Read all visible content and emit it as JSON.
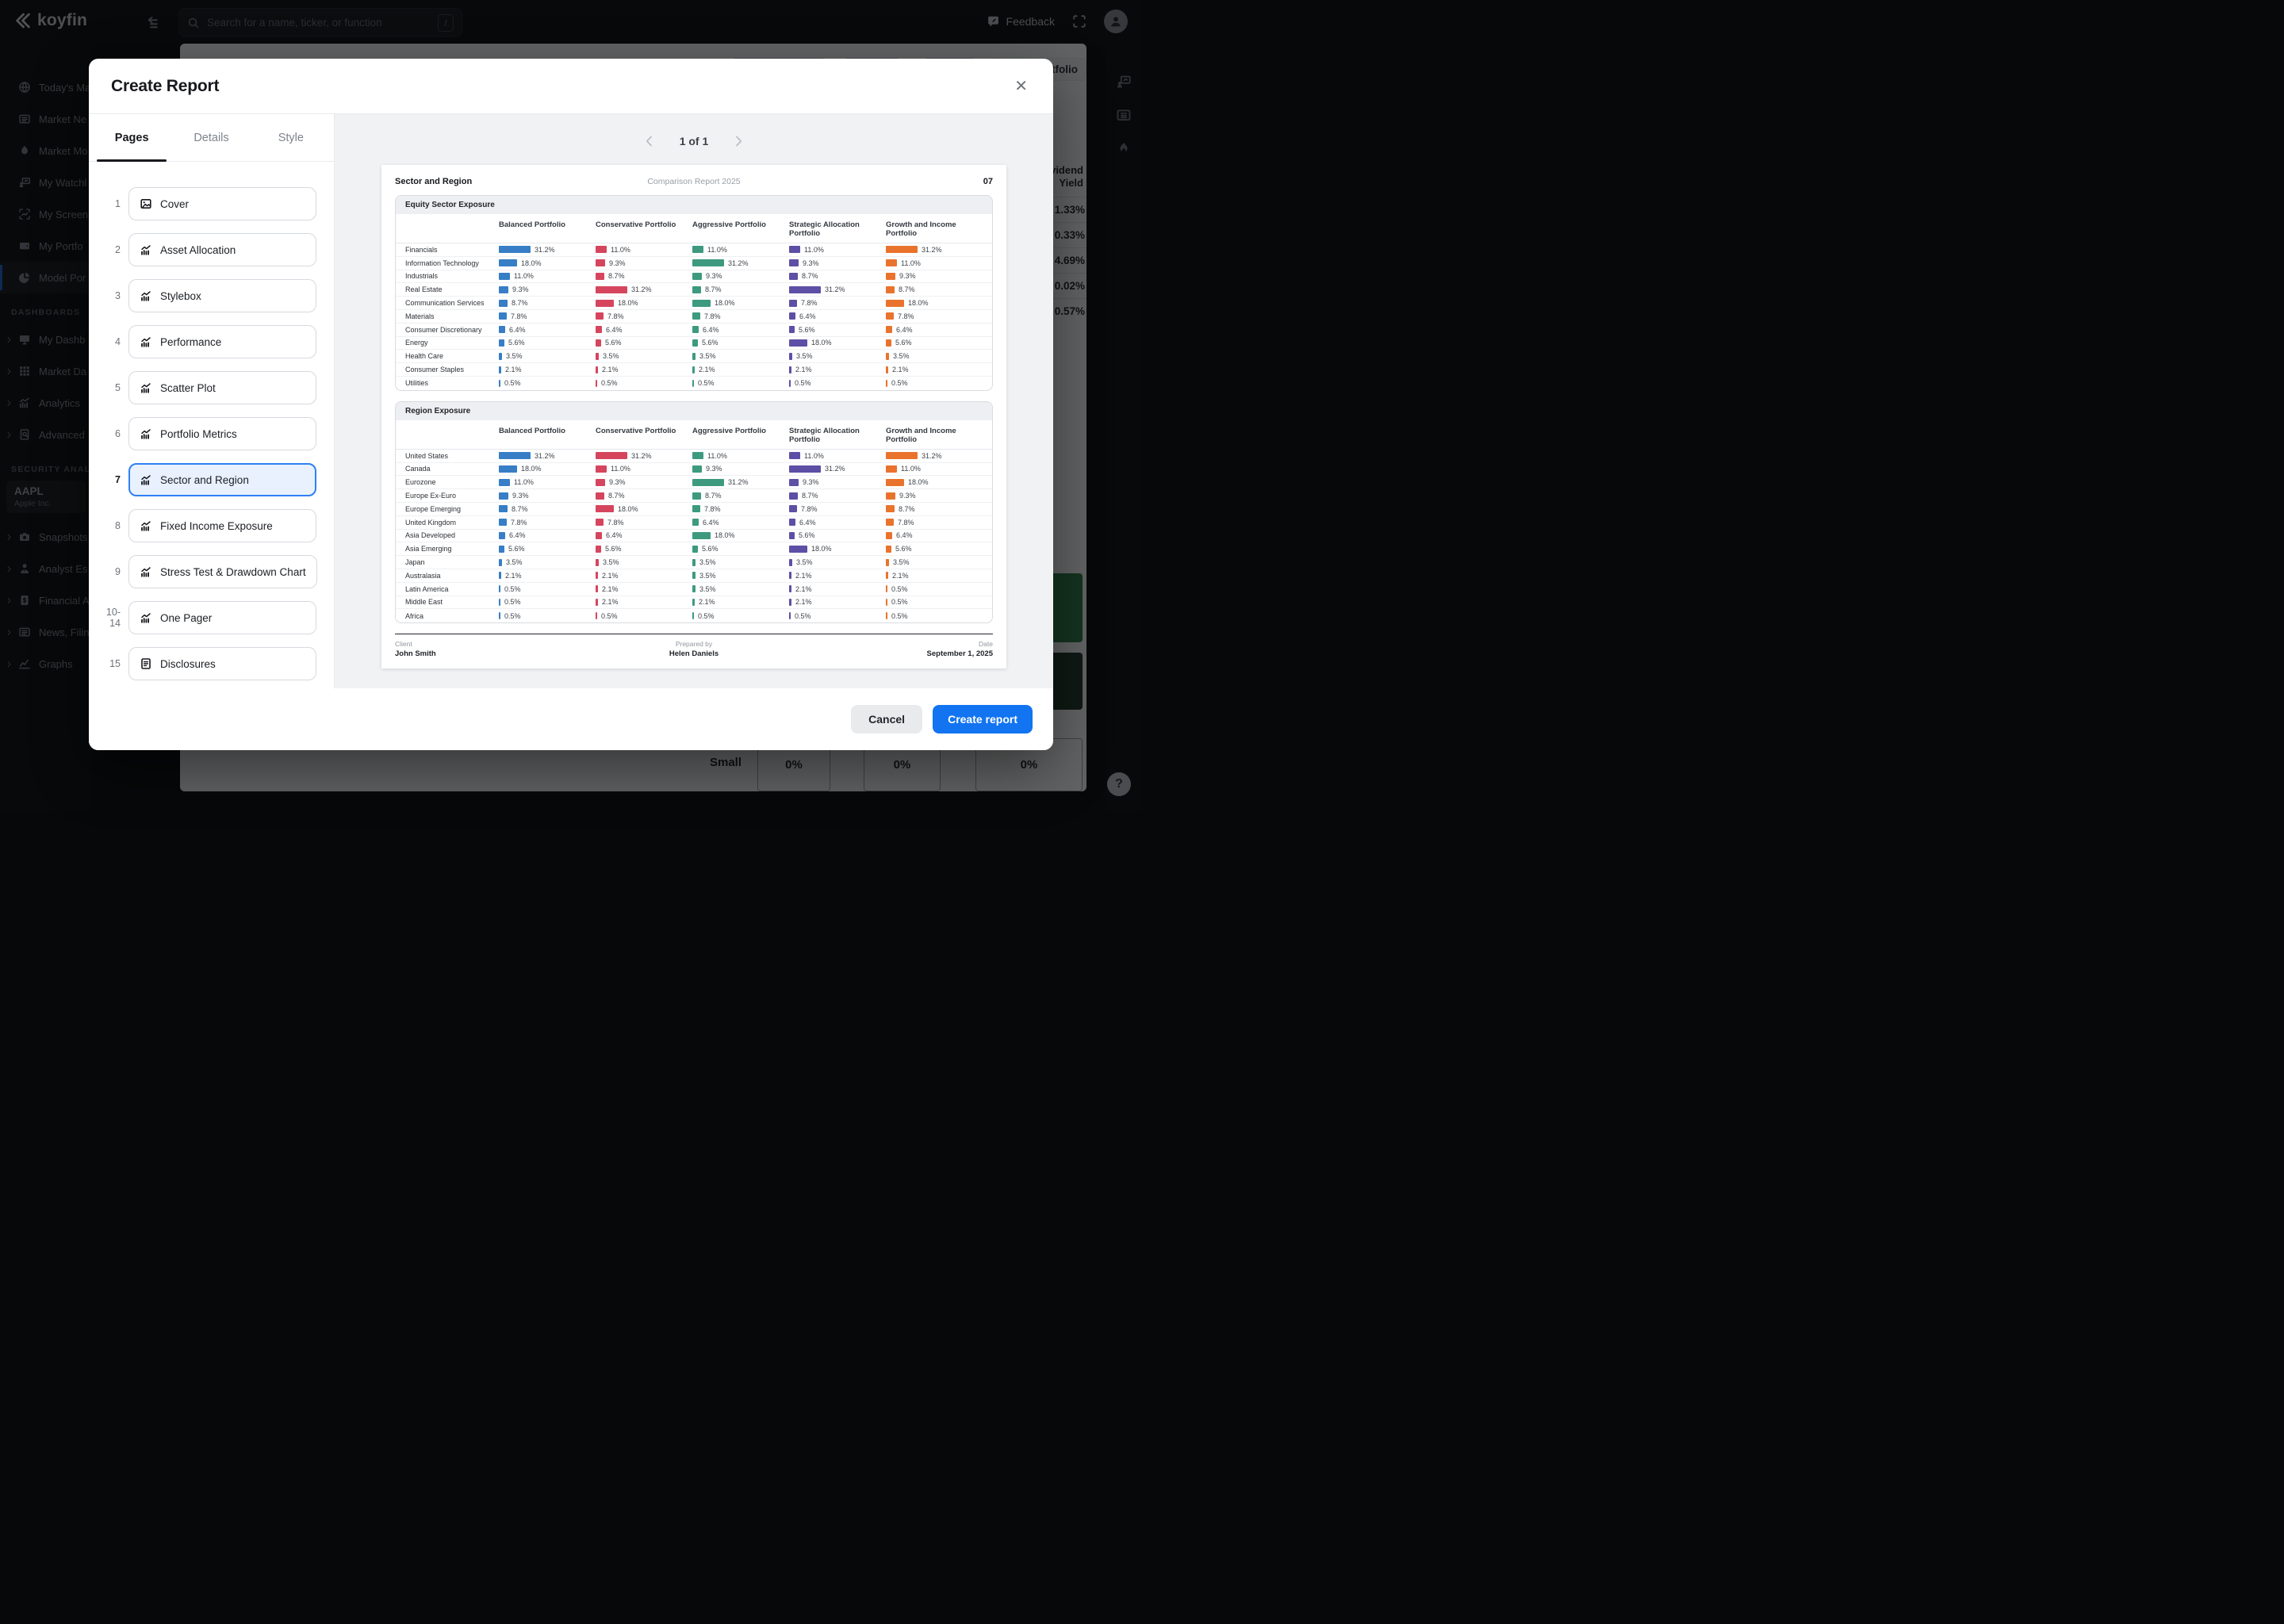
{
  "app": {
    "brand": "koyfin",
    "search": {
      "placeholder": "Search for a name, ticker, or function",
      "shortcut": "/"
    },
    "topbar": {
      "feedback_label": "Feedback"
    },
    "sidebar": {
      "items": [
        {
          "label": "Today's Ma",
          "icon": "globe"
        },
        {
          "label": "Market Ne",
          "icon": "news"
        },
        {
          "label": "Market Mo",
          "icon": "flame"
        },
        {
          "label": "My Watchl",
          "icon": "watchlist"
        },
        {
          "label": "My Screen",
          "icon": "screener"
        },
        {
          "label": "My Portfo",
          "icon": "wallet"
        },
        {
          "label": "Model Por",
          "icon": "pie",
          "active": true
        }
      ],
      "dashboards_label": "DASHBOARDS",
      "dashboard_items": [
        {
          "label": "My Dashb",
          "icon": "monitor",
          "expandable": true
        },
        {
          "label": "Market Da",
          "icon": "grid",
          "expandable": true
        },
        {
          "label": "Analytics",
          "icon": "chart",
          "expandable": true
        },
        {
          "label": "Advanced",
          "icon": "docsearch",
          "expandable": true
        }
      ],
      "security_label": "SECURITY ANALY",
      "ticker": {
        "symbol": "AAPL",
        "name": "Apple Inc."
      },
      "security_items": [
        {
          "label": "Snapshots",
          "icon": "camera",
          "expandable": true
        },
        {
          "label": "Analyst Es",
          "icon": "analyst",
          "expandable": true
        },
        {
          "label": "Financial A",
          "icon": "docdollar",
          "expandable": true
        },
        {
          "label": "News, Filin",
          "icon": "news",
          "expandable": true
        },
        {
          "label": "Graphs",
          "icon": "graph",
          "expandable": true
        }
      ]
    },
    "background": {
      "partial_button_text": "tfolio",
      "dividend_column": {
        "header_line1": "Dividend",
        "header_line2": "Yield",
        "values": [
          "1.33%",
          "0.33%",
          "4.69%",
          "0.02%",
          "0.57%"
        ]
      },
      "stylebox_row": {
        "label": "Small",
        "cells": [
          "0%",
          "0%",
          "0%"
        ]
      },
      "help_label": "?"
    }
  },
  "modal": {
    "title": "Create Report",
    "tabs": [
      {
        "label": "Pages",
        "active": true
      },
      {
        "label": "Details",
        "active": false
      },
      {
        "label": "Style",
        "active": false
      }
    ],
    "pages": [
      {
        "num": "1",
        "label": "Cover",
        "icon": "image"
      },
      {
        "num": "2",
        "label": "Asset Allocation",
        "icon": "chartp"
      },
      {
        "num": "3",
        "label": "Stylebox",
        "icon": "chartp"
      },
      {
        "num": "4",
        "label": "Performance",
        "icon": "chartp"
      },
      {
        "num": "5",
        "label": "Scatter Plot",
        "icon": "chartp"
      },
      {
        "num": "6",
        "label": "Portfolio Metrics",
        "icon": "chartp"
      },
      {
        "num": "7",
        "label": "Sector and Region",
        "icon": "chartp",
        "selected": true
      },
      {
        "num": "8",
        "label": "Fixed Income Exposure",
        "icon": "chartp"
      },
      {
        "num": "9",
        "label": "Stress Test & Drawdown Chart",
        "icon": "chartp"
      },
      {
        "num": "10-14",
        "label": "One Pager",
        "icon": "chartp"
      },
      {
        "num": "15",
        "label": "Disclosures",
        "icon": "docp"
      }
    ],
    "pagination": {
      "text": "1 of 1"
    },
    "footer": {
      "cancel": "Cancel",
      "create": "Create report"
    }
  },
  "report": {
    "title": "Sector and Region",
    "subtitle": "Comparison Report 2025",
    "page_number": "07",
    "footer": {
      "client_label": "Client",
      "client": "John Smith",
      "prepared_label": "Prepared by",
      "prepared": "Helen Daniels",
      "date_label": "Date",
      "date": "September 1, 2025"
    }
  },
  "chart_data": [
    {
      "type": "bar",
      "title": "Equity Sector Exposure",
      "value_suffix": "%",
      "columns": [
        "Balanced Portfolio",
        "Conservative Portfolio",
        "Aggressive Portfolio",
        "Strategic Allocation Portfolio",
        "Growth and Income Portfolio"
      ],
      "column_colors": [
        "#377ec6",
        "#d5455e",
        "#3d9a7f",
        "#5d4fa5",
        "#e9732d"
      ],
      "xlim": [
        0,
        35
      ],
      "rows": [
        {
          "label": "Financials",
          "values": [
            31.2,
            11.0,
            11.0,
            11.0,
            31.2
          ]
        },
        {
          "label": "Information Technology",
          "values": [
            18.0,
            9.3,
            31.2,
            9.3,
            11.0
          ]
        },
        {
          "label": "Industrials",
          "values": [
            11.0,
            8.7,
            9.3,
            8.7,
            9.3
          ]
        },
        {
          "label": "Real Estate",
          "values": [
            9.3,
            31.2,
            8.7,
            31.2,
            8.7
          ]
        },
        {
          "label": "Communication Services",
          "values": [
            8.7,
            18.0,
            18.0,
            7.8,
            18.0
          ]
        },
        {
          "label": "Materials",
          "values": [
            7.8,
            7.8,
            7.8,
            6.4,
            7.8
          ]
        },
        {
          "label": "Consumer Discretionary",
          "values": [
            6.4,
            6.4,
            6.4,
            5.6,
            6.4
          ]
        },
        {
          "label": "Energy",
          "values": [
            5.6,
            5.6,
            5.6,
            18.0,
            5.6
          ]
        },
        {
          "label": "Health Care",
          "values": [
            3.5,
            3.5,
            3.5,
            3.5,
            3.5
          ]
        },
        {
          "label": "Consumer Staples",
          "values": [
            2.1,
            2.1,
            2.1,
            2.1,
            2.1
          ]
        },
        {
          "label": "Utilities",
          "values": [
            0.5,
            0.5,
            0.5,
            0.5,
            0.5
          ]
        }
      ]
    },
    {
      "type": "bar",
      "title": "Region Exposure",
      "value_suffix": "%",
      "columns": [
        "Balanced Portfolio",
        "Conservative Portfolio",
        "Aggressive Portfolio",
        "Strategic Allocation Portfolio",
        "Growth and Income Portfolio"
      ],
      "column_colors": [
        "#377ec6",
        "#d5455e",
        "#3d9a7f",
        "#5d4fa5",
        "#e9732d"
      ],
      "xlim": [
        0,
        35
      ],
      "rows": [
        {
          "label": "United States",
          "values": [
            31.2,
            31.2,
            11.0,
            11.0,
            31.2
          ]
        },
        {
          "label": "Canada",
          "values": [
            18.0,
            11.0,
            9.3,
            31.2,
            11.0
          ]
        },
        {
          "label": "Eurozone",
          "values": [
            11.0,
            9.3,
            31.2,
            9.3,
            18.0
          ]
        },
        {
          "label": "Europe Ex-Euro",
          "values": [
            9.3,
            8.7,
            8.7,
            8.7,
            9.3
          ]
        },
        {
          "label": "Europe Emerging",
          "values": [
            8.7,
            18.0,
            7.8,
            7.8,
            8.7
          ]
        },
        {
          "label": "United Kingdom",
          "values": [
            7.8,
            7.8,
            6.4,
            6.4,
            7.8
          ]
        },
        {
          "label": "Asia Developed",
          "values": [
            6.4,
            6.4,
            18.0,
            5.6,
            6.4
          ]
        },
        {
          "label": "Asia Emerging",
          "values": [
            5.6,
            5.6,
            5.6,
            18.0,
            5.6
          ]
        },
        {
          "label": "Japan",
          "values": [
            3.5,
            3.5,
            3.5,
            3.5,
            3.5
          ]
        },
        {
          "label": "Australasia",
          "values": [
            2.1,
            2.1,
            3.5,
            2.1,
            2.1
          ]
        },
        {
          "label": "Latin America",
          "values": [
            0.5,
            2.1,
            3.5,
            2.1,
            0.5
          ]
        },
        {
          "label": "Middle East",
          "values": [
            0.5,
            2.1,
            2.1,
            2.1,
            0.5
          ]
        },
        {
          "label": "Africa",
          "values": [
            0.5,
            0.5,
            0.5,
            0.5,
            0.5
          ]
        }
      ]
    }
  ]
}
